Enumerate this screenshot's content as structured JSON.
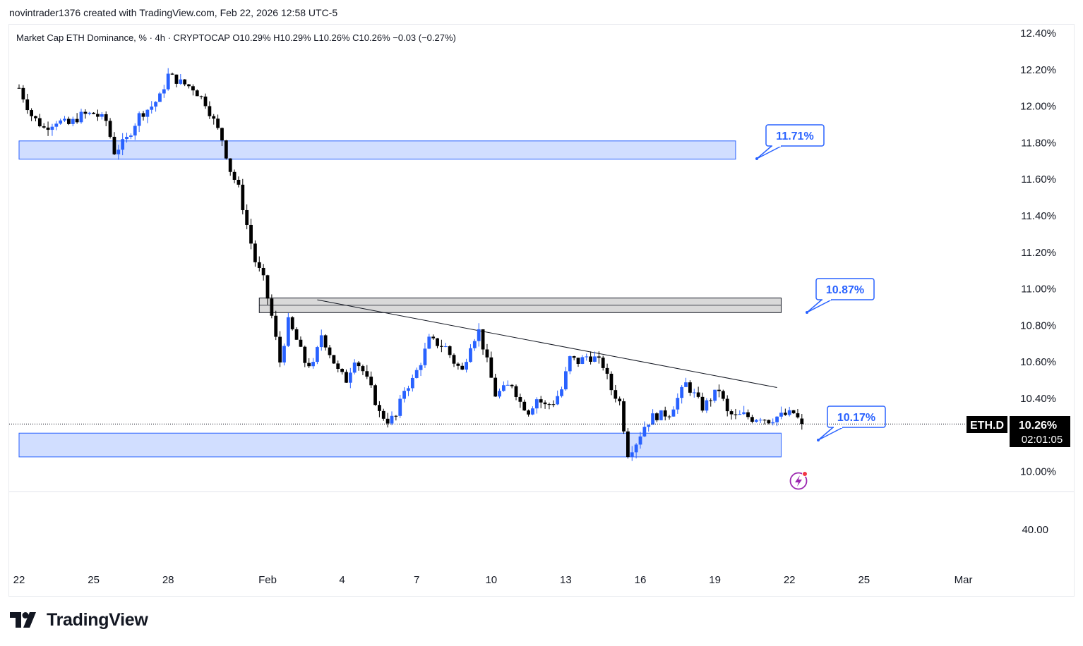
{
  "header": {
    "credit": "novintrader1376 created with TradingView.com, Feb 22, 2026 12:58 UTC-5"
  },
  "legend": {
    "text": "Market Cap ETH Dominance, % · 4h · CRYPTOCAP  O10.29%  H10.29%  L10.26%  C10.26%  −0.03 (−0.27%)"
  },
  "price_axis": {
    "ticks": [
      "12.40%",
      "12.20%",
      "12.00%",
      "11.80%",
      "11.60%",
      "11.40%",
      "11.20%",
      "11.00%",
      "10.80%",
      "10.60%",
      "10.40%",
      "10.00%"
    ],
    "volume_tick": "40.00"
  },
  "time_axis": {
    "ticks": [
      "22",
      "25",
      "28",
      "Feb",
      "4",
      "7",
      "10",
      "13",
      "16",
      "19",
      "22",
      "25",
      "Mar"
    ]
  },
  "last_price": {
    "symbol": "ETH.D",
    "value": "10.26%",
    "countdown": "02:01:05"
  },
  "colors": {
    "up": "#2962ff",
    "down": "#000000",
    "zone_blue": "#d1deff",
    "zone_grey": "#d9d9d9",
    "callout": "#2962ff"
  },
  "icons": {
    "logo": "tradingview-logo-icon",
    "alert": "lightning-alert-icon"
  },
  "brand": {
    "name": "TradingView"
  },
  "chart_data": {
    "type": "candlestick",
    "symbol": "ETH.D",
    "title": "Market Cap ETH Dominance, % · 4h · CRYPTOCAP",
    "interval": "4h",
    "ylim": [
      9.94,
      12.42
    ],
    "x_range": [
      "2026-01-22",
      "2026-03-02"
    ],
    "ohlc_last": {
      "open": 10.29,
      "high": 10.29,
      "low": 10.26,
      "close": 10.26,
      "change": -0.03,
      "change_pct": -0.27
    },
    "path": [
      [
        "2026-01-22T00:00",
        12.1
      ],
      [
        "2026-01-22T12:00",
        11.95
      ],
      [
        "2026-01-23T00:00",
        11.88
      ],
      [
        "2026-01-23T12:00",
        11.92
      ],
      [
        "2026-01-24T00:00",
        11.9
      ],
      [
        "2026-01-24T12:00",
        11.95
      ],
      [
        "2026-01-25T00:00",
        11.96
      ],
      [
        "2026-01-25T12:00",
        11.92
      ],
      [
        "2026-01-25T20:00",
        11.75
      ],
      [
        "2026-01-26T08:00",
        11.82
      ],
      [
        "2026-01-26T20:00",
        11.95
      ],
      [
        "2026-01-27T08:00",
        12.0
      ],
      [
        "2026-01-27T16:00",
        12.05
      ],
      [
        "2026-01-28T00:00",
        12.17
      ],
      [
        "2026-01-28T12:00",
        12.13
      ],
      [
        "2026-01-29T00:00",
        12.1
      ],
      [
        "2026-01-29T12:00",
        12.02
      ],
      [
        "2026-01-29T20:00",
        11.92
      ],
      [
        "2026-01-30T04:00",
        11.82
      ],
      [
        "2026-01-30T12:00",
        11.65
      ],
      [
        "2026-01-30T20:00",
        11.55
      ],
      [
        "2026-01-31T04:00",
        11.35
      ],
      [
        "2026-01-31T12:00",
        11.15
      ],
      [
        "2026-01-31T20:00",
        11.05
      ],
      [
        "2026-02-01T04:00",
        10.85
      ],
      [
        "2026-02-01T12:00",
        10.6
      ],
      [
        "2026-02-01T20:00",
        10.82
      ],
      [
        "2026-02-02T04:00",
        10.72
      ],
      [
        "2026-02-02T12:00",
        10.6
      ],
      [
        "2026-02-02T20:00",
        10.58
      ],
      [
        "2026-02-03T04:00",
        10.75
      ],
      [
        "2026-02-03T12:00",
        10.65
      ],
      [
        "2026-02-03T20:00",
        10.55
      ],
      [
        "2026-02-04T04:00",
        10.5
      ],
      [
        "2026-02-04T12:00",
        10.62
      ],
      [
        "2026-02-04T20:00",
        10.55
      ],
      [
        "2026-02-05T04:00",
        10.45
      ],
      [
        "2026-02-05T12:00",
        10.32
      ],
      [
        "2026-02-05T20:00",
        10.28
      ],
      [
        "2026-02-06T04:00",
        10.3
      ],
      [
        "2026-02-06T12:00",
        10.45
      ],
      [
        "2026-02-06T20:00",
        10.5
      ],
      [
        "2026-02-07T04:00",
        10.6
      ],
      [
        "2026-02-07T12:00",
        10.72
      ],
      [
        "2026-02-07T20:00",
        10.7
      ],
      [
        "2026-02-08T04:00",
        10.68
      ],
      [
        "2026-02-08T12:00",
        10.6
      ],
      [
        "2026-02-08T20:00",
        10.55
      ],
      [
        "2026-02-09T04:00",
        10.7
      ],
      [
        "2026-02-09T12:00",
        10.77
      ],
      [
        "2026-02-09T20:00",
        10.6
      ],
      [
        "2026-02-10T04:00",
        10.42
      ],
      [
        "2026-02-10T12:00",
        10.45
      ],
      [
        "2026-02-10T20:00",
        10.48
      ],
      [
        "2026-02-11T04:00",
        10.38
      ],
      [
        "2026-02-11T12:00",
        10.33
      ],
      [
        "2026-02-11T20:00",
        10.4
      ],
      [
        "2026-02-12T04:00",
        10.36
      ],
      [
        "2026-02-12T12:00",
        10.38
      ],
      [
        "2026-02-12T20:00",
        10.45
      ],
      [
        "2026-02-13T04:00",
        10.62
      ],
      [
        "2026-02-13T12:00",
        10.6
      ],
      [
        "2026-02-13T20:00",
        10.63
      ],
      [
        "2026-02-14T04:00",
        10.62
      ],
      [
        "2026-02-14T12:00",
        10.58
      ],
      [
        "2026-02-14T20:00",
        10.45
      ],
      [
        "2026-02-15T04:00",
        10.38
      ],
      [
        "2026-02-15T12:00",
        10.1
      ],
      [
        "2026-02-15T20:00",
        10.16
      ],
      [
        "2026-02-16T04:00",
        10.25
      ],
      [
        "2026-02-16T12:00",
        10.3
      ],
      [
        "2026-02-16T20:00",
        10.31
      ],
      [
        "2026-02-17T04:00",
        10.32
      ],
      [
        "2026-02-17T12:00",
        10.4
      ],
      [
        "2026-02-17T20:00",
        10.48
      ],
      [
        "2026-02-18T04:00",
        10.42
      ],
      [
        "2026-02-18T12:00",
        10.35
      ],
      [
        "2026-02-18T20:00",
        10.4
      ],
      [
        "2026-02-19T04:00",
        10.45
      ],
      [
        "2026-02-19T12:00",
        10.32
      ],
      [
        "2026-02-19T20:00",
        10.3
      ],
      [
        "2026-02-20T04:00",
        10.31
      ],
      [
        "2026-02-20T12:00",
        10.29
      ],
      [
        "2026-02-20T20:00",
        10.3
      ],
      [
        "2026-02-21T04:00",
        10.28
      ],
      [
        "2026-02-21T12:00",
        10.3
      ],
      [
        "2026-02-21T20:00",
        10.31
      ],
      [
        "2026-02-22T04:00",
        10.32
      ],
      [
        "2026-02-22T12:00",
        10.26
      ]
    ],
    "zones": [
      {
        "color": "blue",
        "low": 11.71,
        "high": 11.81,
        "from": "2026-01-22",
        "to": "2026-02-19T20:00",
        "label": "11.71%"
      },
      {
        "color": "grey",
        "low": 10.87,
        "high": 10.95,
        "from": "2026-01-31T16:00",
        "to": "2026-02-21T16:00",
        "label": "10.87%"
      },
      {
        "color": "blue",
        "low": 10.08,
        "high": 10.21,
        "from": "2026-01-22",
        "to": "2026-02-21T16:00",
        "label": "10.17%"
      }
    ],
    "trendline": {
      "from": [
        "2026-02-03T00:00",
        10.94
      ],
      "to": [
        "2026-02-21T12:00",
        10.46
      ]
    },
    "last_value": 10.26,
    "grid": false
  }
}
